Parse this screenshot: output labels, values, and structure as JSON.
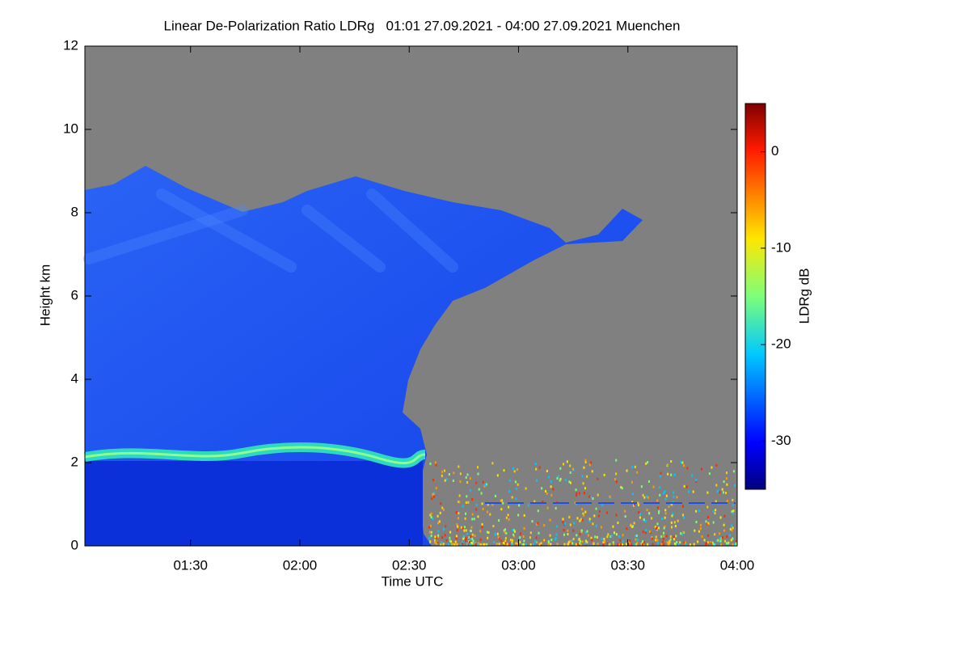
{
  "chart_data": {
    "type": "heatmap",
    "title": "Linear De-Polarization Ratio LDRg   01:01 27.09.2021 - 04:00 27.09.2021 Muenchen",
    "x_label": "Time UTC",
    "y_label": "Height km",
    "xlim": [
      61,
      240
    ],
    "xticks": [
      {
        "value": 90,
        "label": "01:30"
      },
      {
        "value": 120,
        "label": "02:00"
      },
      {
        "value": 150,
        "label": "02:30"
      },
      {
        "value": 180,
        "label": "03:00"
      },
      {
        "value": 210,
        "label": "03:30"
      },
      {
        "value": 240,
        "label": "04:00"
      }
    ],
    "ylim": [
      0,
      12
    ],
    "yticks": [
      0,
      2,
      4,
      6,
      8,
      10,
      12
    ],
    "colorbar": {
      "label": "LDRg dB",
      "lim": [
        -35,
        5
      ],
      "ticks": [
        0,
        -10,
        -20,
        -30
      ]
    }
  }
}
